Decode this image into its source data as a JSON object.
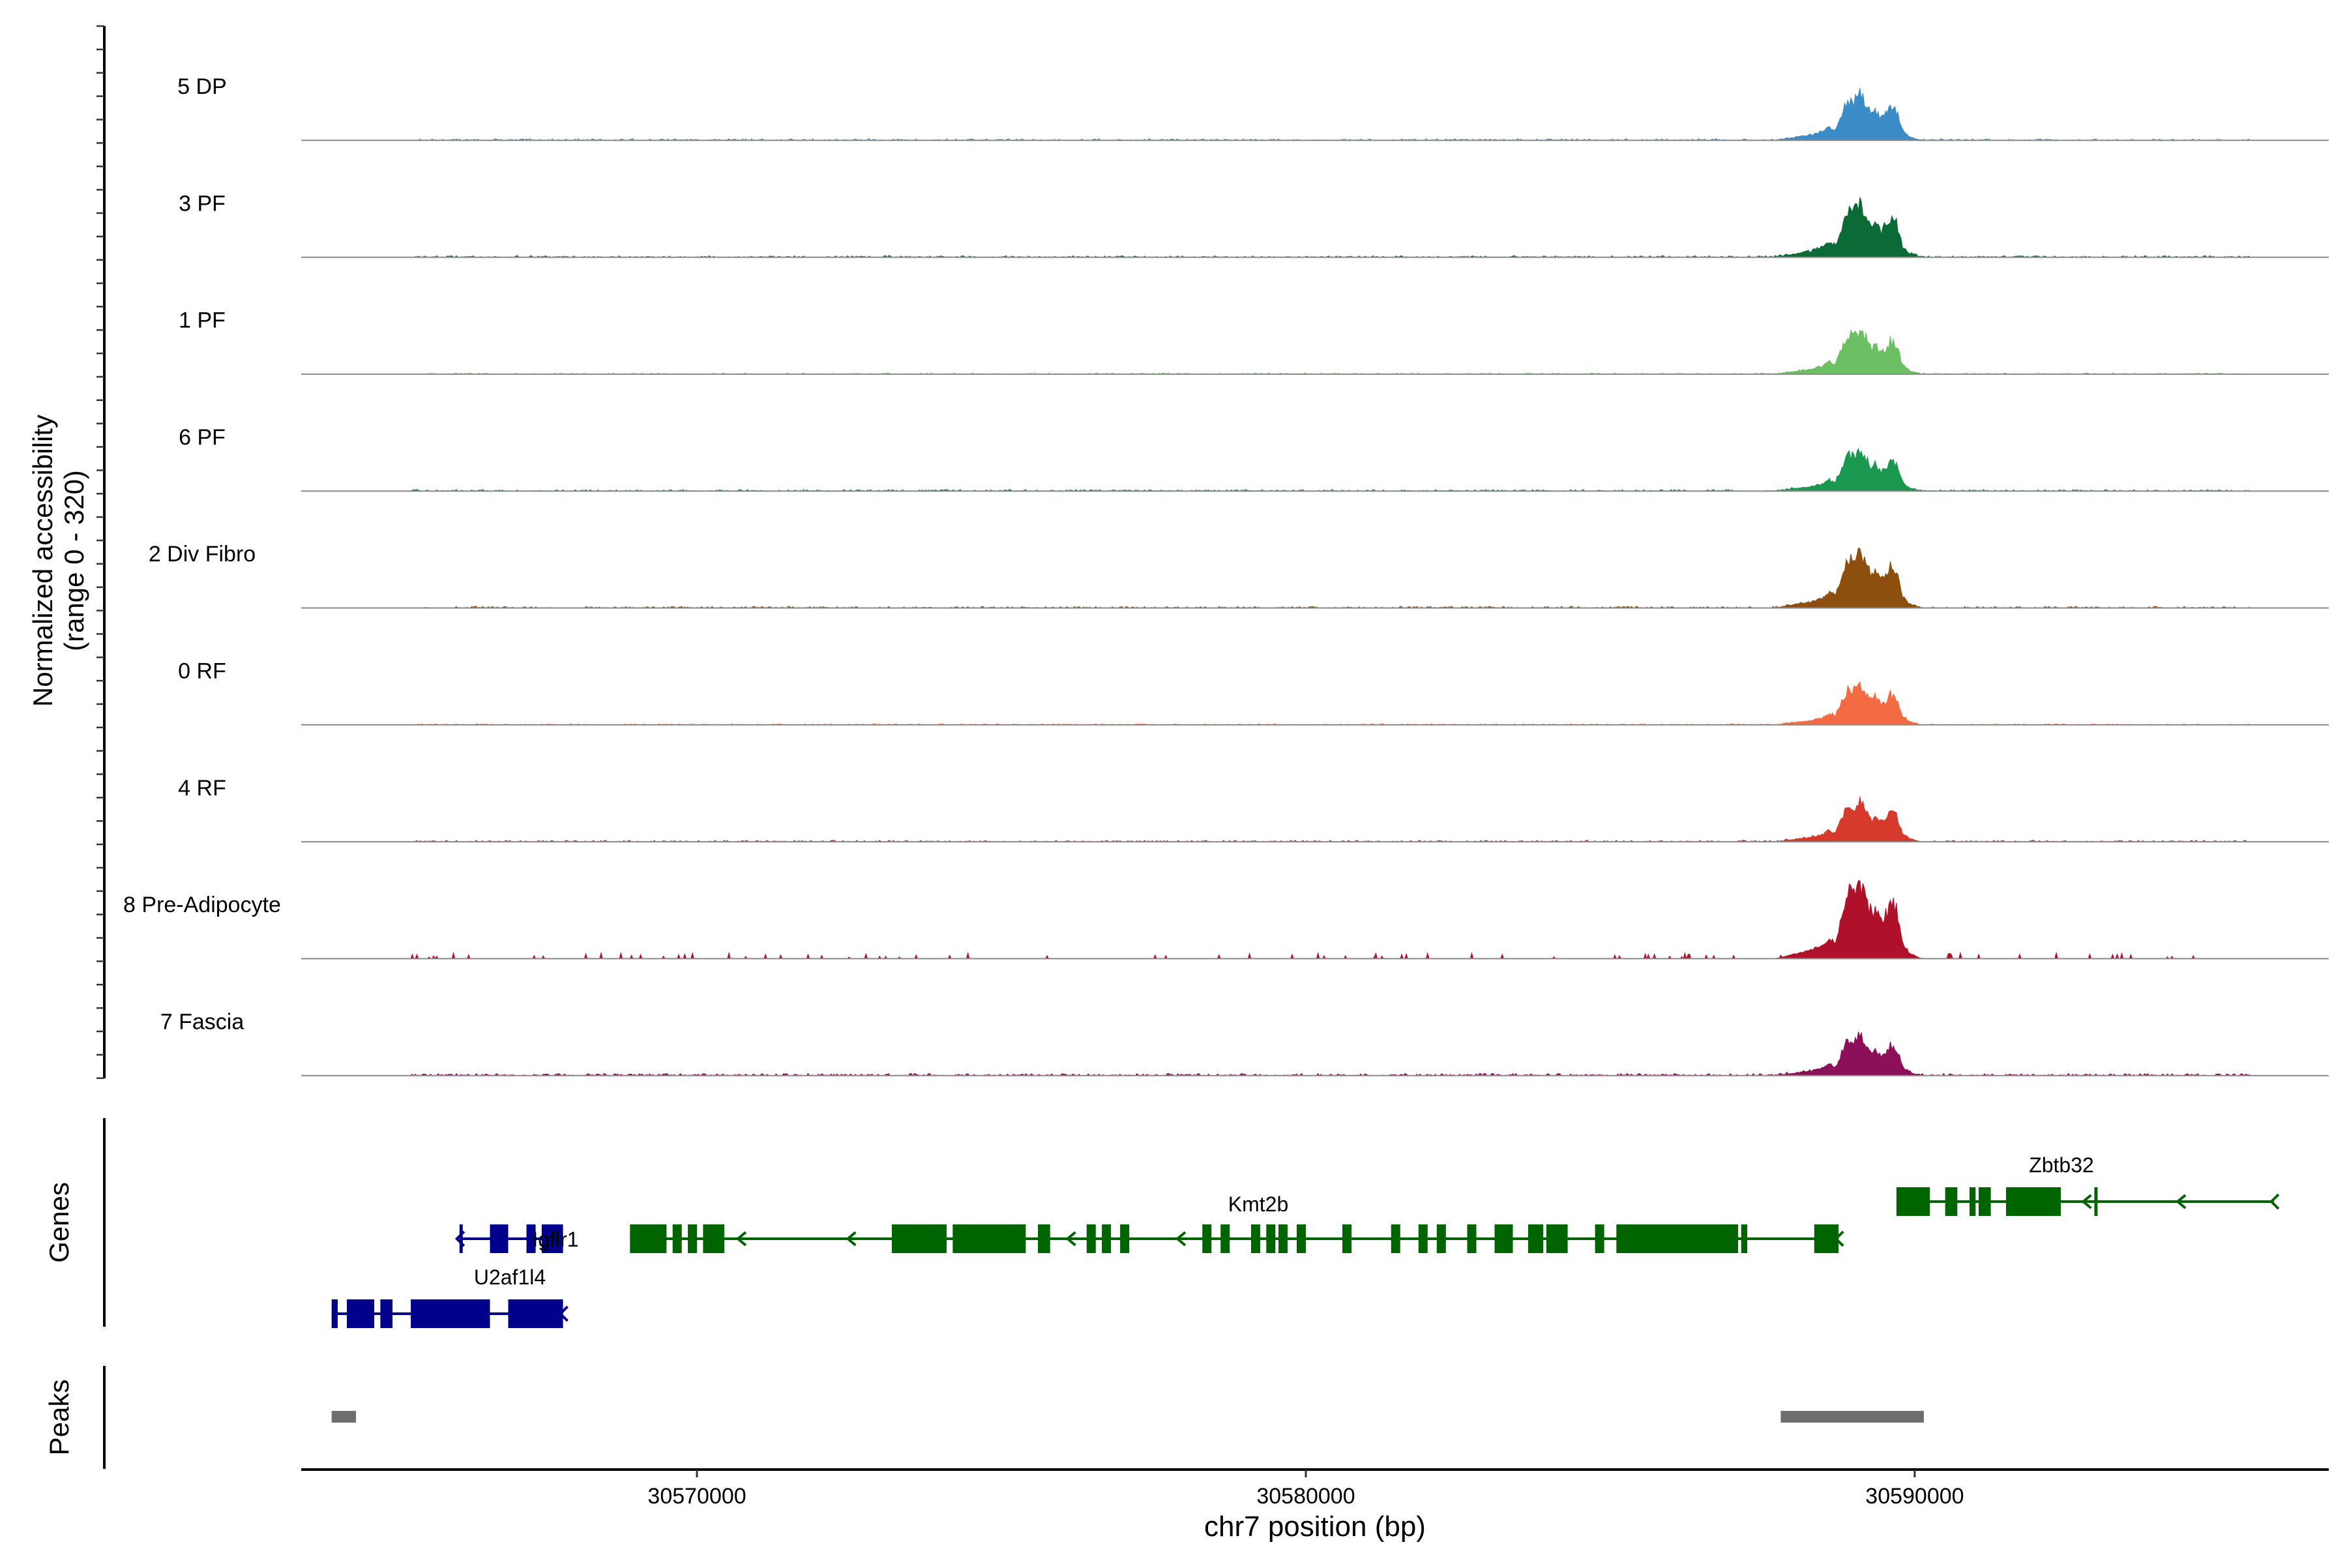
{
  "chart_data": {
    "type": "area",
    "subtype": "genome-coverage-track",
    "chromosome": "chr7",
    "xlim": [
      30563500,
      30596800
    ],
    "xticks": [
      30570000,
      30580000,
      30590000
    ],
    "xtick_labels": [
      "30570000",
      "30580000",
      "30590000"
    ],
    "xlabel": "chr7 position (bp)",
    "ylabel_line1": "Normalized accessibility",
    "ylabel_line2": "(range 0 - 320)",
    "ylim": [
      0,
      320
    ],
    "genes_label": "Genes",
    "peaks_label": "Peaks",
    "tracks": [
      {
        "name": "5 DP",
        "color": "#3b8bc6",
        "scale": 0.82,
        "bg": 0.03,
        "sparse": false
      },
      {
        "name": "3 PF",
        "color": "#0b6a36",
        "scale": 0.95,
        "bg": 0.03,
        "sparse": false
      },
      {
        "name": "1 PF",
        "color": "#6dbf63",
        "scale": 0.8,
        "bg": 0.02,
        "sparse": false
      },
      {
        "name": "6 PF",
        "color": "#1a9850",
        "scale": 0.72,
        "bg": 0.03,
        "sparse": false
      },
      {
        "name": "2 Div Fibro",
        "color": "#8c4f0d",
        "scale": 1.0,
        "bg": 0.03,
        "sparse": false
      },
      {
        "name": "0 RF",
        "color": "#f26b43",
        "scale": 0.72,
        "bg": 0.02,
        "sparse": false
      },
      {
        "name": "4 RF",
        "color": "#d63a2c",
        "scale": 0.72,
        "bg": 0.03,
        "sparse": false
      },
      {
        "name": "8 Pre-Adipocyte",
        "color": "#b0112a",
        "scale": 1.38,
        "bg": 0.06,
        "sparse": true
      },
      {
        "name": "7 Fascia",
        "color": "#8b0f59",
        "scale": 0.72,
        "bg": 0.04,
        "sparse": false
      }
    ],
    "peak_profile": [
      [
        30587700,
        0.0
      ],
      [
        30588000,
        0.05
      ],
      [
        30588300,
        0.1
      ],
      [
        30588500,
        0.17
      ],
      [
        30588600,
        0.26
      ],
      [
        30588700,
        0.18
      ],
      [
        30588800,
        0.55
      ],
      [
        30588900,
        0.85
      ],
      [
        30589000,
        0.75
      ],
      [
        30589100,
        0.92
      ],
      [
        30589200,
        0.7
      ],
      [
        30589300,
        0.45
      ],
      [
        30589350,
        0.62
      ],
      [
        30589450,
        0.42
      ],
      [
        30589550,
        0.55
      ],
      [
        30589600,
        0.7
      ],
      [
        30589700,
        0.58
      ],
      [
        30589800,
        0.12
      ],
      [
        30589900,
        0.06
      ],
      [
        30590100,
        0.0
      ]
    ],
    "genes": [
      {
        "name": "Igflr1",
        "color": "#00008b",
        "row": 1,
        "start": 30566100,
        "end": 30567800,
        "strand": "+",
        "exons": [
          [
            30566100,
            30566130
          ],
          [
            30566600,
            30566900
          ],
          [
            30567200,
            30567350
          ],
          [
            30567450,
            30567800
          ]
        ]
      },
      {
        "name": "U2af1l4",
        "color": "#00008b",
        "row": 2,
        "start": 30564000,
        "end": 30567800,
        "strand": "-",
        "exons": [
          [
            30564000,
            30564100
          ],
          [
            30564250,
            30564700
          ],
          [
            30564800,
            30565000
          ],
          [
            30565300,
            30566600
          ],
          [
            30566900,
            30567800
          ]
        ]
      },
      {
        "name": "Kmt2b",
        "color": "#006400",
        "row": 1,
        "start": 30568900,
        "end": 30588750,
        "strand": "-",
        "exons": [
          [
            30568900,
            30569500
          ],
          [
            30569600,
            30569750
          ],
          [
            30569850,
            30570000
          ],
          [
            30570100,
            30570450
          ],
          [
            30573200,
            30574100
          ],
          [
            30574200,
            30575400
          ],
          [
            30575600,
            30575800
          ],
          [
            30576400,
            30576550
          ],
          [
            30576650,
            30576800
          ],
          [
            30576950,
            30577100
          ],
          [
            30578300,
            30578450
          ],
          [
            30578600,
            30578750
          ],
          [
            30579100,
            30579250
          ],
          [
            30579350,
            30579500
          ],
          [
            30579550,
            30579700
          ],
          [
            30579850,
            30580000
          ],
          [
            30580600,
            30580750
          ],
          [
            30581400,
            30581550
          ],
          [
            30581850,
            30582000
          ],
          [
            30582150,
            30582300
          ],
          [
            30582650,
            30582800
          ],
          [
            30583100,
            30583400
          ],
          [
            30583650,
            30583900
          ],
          [
            30583950,
            30584300
          ],
          [
            30584750,
            30584900
          ],
          [
            30585100,
            30587100
          ],
          [
            30587150,
            30587250
          ],
          [
            30588350,
            30588750
          ]
        ]
      },
      {
        "name": "Zbtb32",
        "color": "#006400",
        "row": 0,
        "start": 30589700,
        "end": 30595900,
        "strand": "-",
        "exons": [
          [
            30589700,
            30590250
          ],
          [
            30590500,
            30590700
          ],
          [
            30590900,
            30591000
          ],
          [
            30591050,
            30591250
          ],
          [
            30591500,
            30592400
          ],
          [
            30592950,
            30592990
          ]
        ]
      }
    ],
    "peaks": [
      [
        30564000,
        30564400
      ],
      [
        30587800,
        30590150
      ]
    ]
  }
}
